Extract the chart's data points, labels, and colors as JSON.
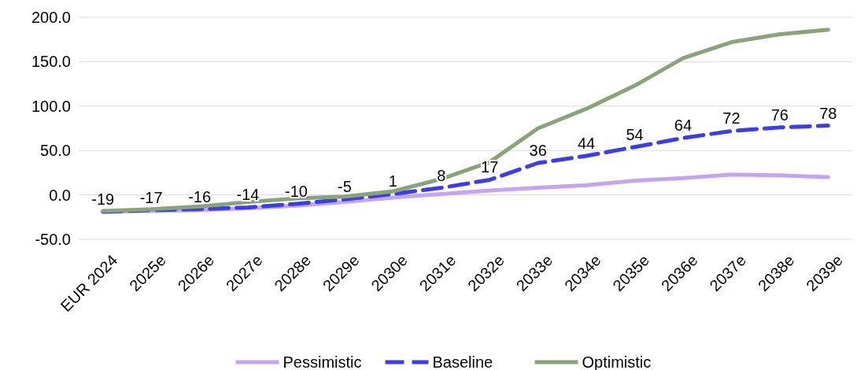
{
  "chart_data": {
    "type": "line",
    "categories": [
      "EUR 2024",
      "2025e",
      "2026e",
      "2027e",
      "2028e",
      "2029e",
      "2030e",
      "2031e",
      "2032e",
      "2033e",
      "2034e",
      "2035e",
      "2036e",
      "2037e",
      "2038e",
      "2039e"
    ],
    "series": [
      {
        "name": "Pessimistic",
        "color": "#c5a3f5",
        "values": [
          -19,
          -18,
          -17,
          -15,
          -12,
          -8,
          -3,
          1,
          5,
          8,
          11,
          16,
          19,
          23,
          22,
          20
        ]
      },
      {
        "name": "Baseline",
        "color": "#3b3bf0",
        "line_style": "dashed",
        "values": [
          -19,
          -17,
          -16,
          -14,
          -10,
          -5,
          1,
          8,
          17,
          36,
          44,
          54,
          64,
          72,
          76,
          78
        ],
        "value_labels": [
          "-19",
          "-17",
          "-16",
          "-14",
          "-10",
          "-5",
          "1",
          "8",
          "17",
          "36",
          "44",
          "54",
          "64",
          "72",
          "76",
          "78"
        ]
      },
      {
        "name": "Optimistic",
        "color": "#8aa37b",
        "values": [
          -18,
          -16,
          -13,
          -8,
          -4,
          -2,
          4,
          18,
          37,
          75,
          97,
          123,
          154,
          172,
          181,
          186
        ]
      }
    ],
    "ylim": [
      -50,
      200
    ],
    "yticks": [
      {
        "value": -50,
        "label": "-50.0"
      },
      {
        "value": 0,
        "label": "0.0"
      },
      {
        "value": 50,
        "label": "50.0"
      },
      {
        "value": 100,
        "label": "100.0"
      },
      {
        "value": 150,
        "label": "150.0"
      },
      {
        "value": 200,
        "label": "200.0"
      }
    ],
    "grid": "y",
    "legend": "bottom",
    "marker": "none"
  }
}
